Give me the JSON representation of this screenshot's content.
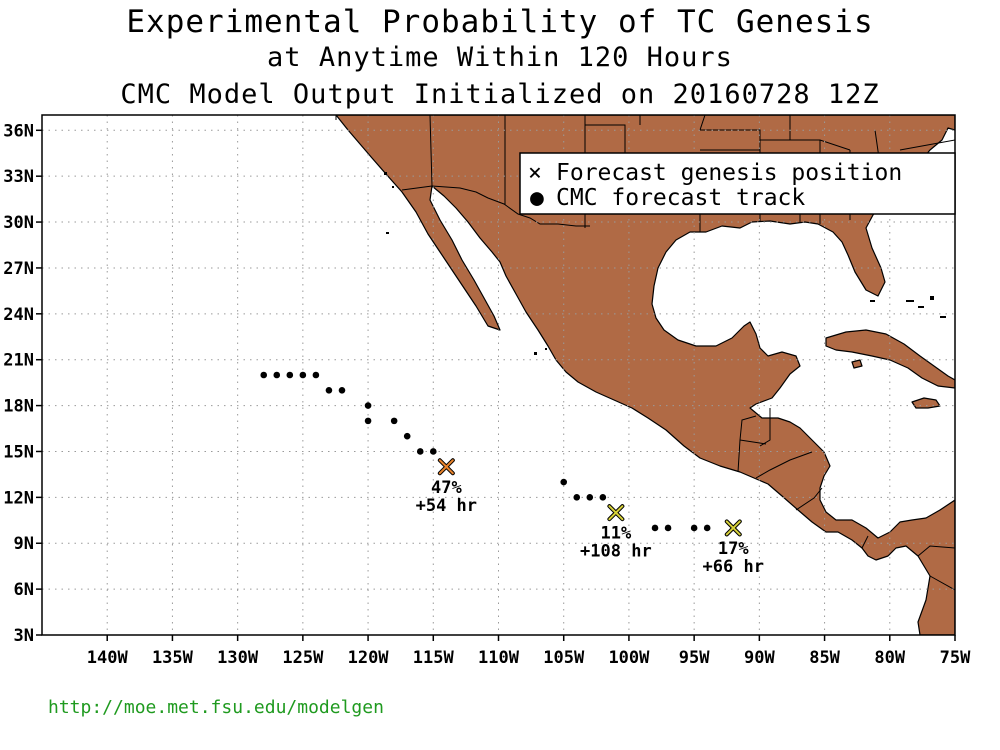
{
  "title": {
    "line1": "Experimental Probability of TC Genesis",
    "line2": "at Anytime Within 120 Hours",
    "line3": "CMC Model Output Initialized on 20160728 12Z"
  },
  "map": {
    "lon_range": [
      -145,
      -75
    ],
    "lat_range": [
      3,
      37
    ],
    "land_color": "#b06a45",
    "x_ticks": [
      {
        "lon": -140,
        "label": "140W"
      },
      {
        "lon": -135,
        "label": "135W"
      },
      {
        "lon": -130,
        "label": "130W"
      },
      {
        "lon": -125,
        "label": "125W"
      },
      {
        "lon": -120,
        "label": "120W"
      },
      {
        "lon": -115,
        "label": "115W"
      },
      {
        "lon": -110,
        "label": "110W"
      },
      {
        "lon": -105,
        "label": "105W"
      },
      {
        "lon": -100,
        "label": "100W"
      },
      {
        "lon": -95,
        "label": "95W"
      },
      {
        "lon": -90,
        "label": "90W"
      },
      {
        "lon": -85,
        "label": "85W"
      },
      {
        "lon": -80,
        "label": "80W"
      },
      {
        "lon": -75,
        "label": "75W"
      }
    ],
    "y_ticks": [
      {
        "lat": 3,
        "label": "3N"
      },
      {
        "lat": 6,
        "label": "6N"
      },
      {
        "lat": 9,
        "label": "9N"
      },
      {
        "lat": 12,
        "label": "12N"
      },
      {
        "lat": 15,
        "label": "15N"
      },
      {
        "lat": 18,
        "label": "18N"
      },
      {
        "lat": 21,
        "label": "21N"
      },
      {
        "lat": 24,
        "label": "24N"
      },
      {
        "lat": 27,
        "label": "27N"
      },
      {
        "lat": 30,
        "label": "30N"
      },
      {
        "lat": 33,
        "label": "33N"
      },
      {
        "lat": 36,
        "label": "36N"
      }
    ]
  },
  "legend": {
    "genesis_label": "Forecast genesis position",
    "track_label": "CMC forecast track",
    "genesis_symbol": "×",
    "track_symbol": "●",
    "placement": "top-right"
  },
  "genesis_points": [
    {
      "lon": -114,
      "lat": 14,
      "probability": "47%",
      "lead_time": "+54 hr",
      "color": "#e8822a"
    },
    {
      "lon": -101,
      "lat": 11,
      "probability": "11%",
      "lead_time": "+108 hr",
      "color": "#d8d23a"
    },
    {
      "lon": -92,
      "lat": 10,
      "probability": "17%",
      "lead_time": "+66 hr",
      "color": "#d8d23a"
    }
  ],
  "tracks": [
    [
      [
        -128,
        20
      ],
      [
        -127,
        20
      ],
      [
        -126,
        20
      ],
      [
        -125,
        20
      ],
      [
        -124,
        20
      ],
      [
        -123,
        19
      ],
      [
        -122,
        19
      ],
      [
        -120,
        18
      ],
      [
        -120,
        17
      ],
      [
        -118,
        17
      ],
      [
        -117,
        16
      ],
      [
        -116,
        15
      ],
      [
        -115,
        15
      ]
    ],
    [
      [
        -105,
        13
      ],
      [
        -104,
        12
      ],
      [
        -103,
        12
      ],
      [
        -102,
        12
      ],
      [
        -98,
        10
      ],
      [
        -97,
        10
      ]
    ],
    [
      [
        -95,
        10
      ],
      [
        -94,
        10
      ]
    ]
  ],
  "footer": {
    "url": "http://moe.met.fsu.edu/modelgen",
    "url_color": "#1f9a1f"
  }
}
